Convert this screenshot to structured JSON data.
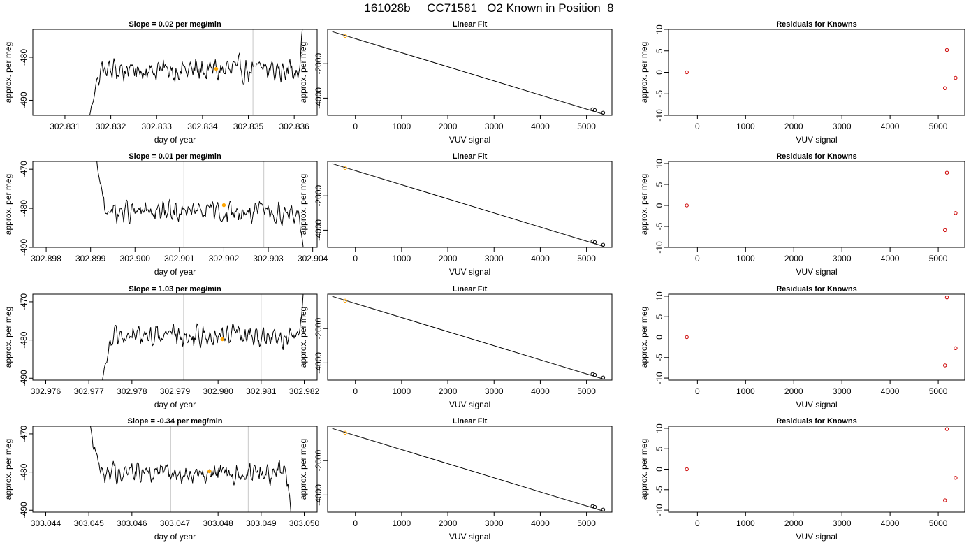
{
  "title": "161028b     CC71581   O2 Known in Position  8",
  "chart_data": [
    {
      "type": "line",
      "title": "Slope =  0.02  per meg/min",
      "xlabel": "day of year",
      "ylabel": "approx. per meg",
      "xlim": [
        302.8303,
        302.8365
      ],
      "ylim": [
        -493.5,
        -473.5
      ],
      "x_ticks": [
        "302.831",
        "302.832",
        "302.833",
        "302.834",
        "302.835",
        "302.836"
      ],
      "y_ticks": [
        "-490",
        "-480"
      ],
      "y_tick_values": [
        -490,
        -480
      ],
      "t_start": 302.8315,
      "t_end": 302.8362,
      "baseline": -483,
      "start_value": -497,
      "end_value": -470,
      "vlines": [
        302.8334,
        302.8351
      ],
      "known_point": {
        "x": 302.8343,
        "y": -482.7,
        "color": "#ffa500"
      }
    },
    {
      "type": "scatter",
      "title": "Linear Fit",
      "xlabel": "VUV signal",
      "ylabel": "approx. per meg",
      "xlim": [
        -600,
        5550
      ],
      "ylim": [
        -5000,
        0
      ],
      "x_ticks": [
        "0",
        "1000",
        "2000",
        "3000",
        "4000",
        "5000"
      ],
      "y_ticks": [
        "-2000",
        "-4000"
      ],
      "y_tick_values": [
        -2000,
        -4000
      ],
      "line": [
        [
          -500,
          -130
        ],
        [
          5380,
          -4950
        ]
      ],
      "points": [
        {
          "x": -220,
          "y": -380,
          "color": "#ffa500"
        },
        {
          "x": 5130,
          "y": -4650,
          "color": "#000000"
        },
        {
          "x": 5180,
          "y": -4700,
          "color": "#000000"
        },
        {
          "x": 5360,
          "y": -4850,
          "color": "#000000"
        }
      ]
    },
    {
      "type": "scatter",
      "title": "Residuals for Knowns",
      "xlabel": "VUV signal",
      "ylabel": "approx. per meg",
      "xlim": [
        -600,
        5550
      ],
      "ylim": [
        -10,
        10
      ],
      "x_ticks": [
        "0",
        "1000",
        "2000",
        "3000",
        "4000",
        "5000"
      ],
      "y_ticks": [
        "-10",
        "-5",
        "0",
        "5",
        "10"
      ],
      "y_tick_values": [
        -10,
        -5,
        0,
        5,
        10
      ],
      "points": [
        {
          "x": -220,
          "y": 0,
          "color": "#cc0000"
        },
        {
          "x": 5180,
          "y": 5.2,
          "color": "#cc0000"
        },
        {
          "x": 5140,
          "y": -3.7,
          "color": "#cc0000"
        },
        {
          "x": 5360,
          "y": -1.3,
          "color": "#cc0000"
        }
      ]
    },
    {
      "type": "line",
      "title": "Slope =  0.01  per meg/min",
      "xlabel": "day of year",
      "ylabel": "approx. per meg",
      "xlim": [
        302.8977,
        302.9041
      ],
      "ylim": [
        -490,
        -468
      ],
      "x_ticks": [
        "302.898",
        "302.899",
        "302.900",
        "302.901",
        "302.902",
        "302.903",
        "302.904"
      ],
      "y_ticks": [
        "-490",
        "-480",
        "-470"
      ],
      "y_tick_values": [
        -490,
        -480,
        -470
      ],
      "t_start": 302.8991,
      "t_end": 302.9038,
      "baseline": -481,
      "start_value": -465,
      "end_value": -492,
      "vlines": [
        302.9011,
        302.9029
      ],
      "known_point": {
        "x": 302.902,
        "y": -479.2,
        "color": "#ffa500"
      }
    },
    {
      "type": "scatter",
      "title": "Linear Fit",
      "xlabel": "VUV signal",
      "ylabel": "approx. per meg",
      "xlim": [
        -600,
        5550
      ],
      "ylim": [
        -5000,
        0
      ],
      "x_ticks": [
        "0",
        "1000",
        "2000",
        "3000",
        "4000",
        "5000"
      ],
      "y_ticks": [
        "-2000",
        "-4000"
      ],
      "y_tick_values": [
        -2000,
        -4000
      ],
      "line": [
        [
          -500,
          -130
        ],
        [
          5380,
          -4950
        ]
      ],
      "points": [
        {
          "x": -220,
          "y": -380,
          "color": "#ffa500"
        },
        {
          "x": 5130,
          "y": -4650,
          "color": "#000000"
        },
        {
          "x": 5180,
          "y": -4700,
          "color": "#000000"
        },
        {
          "x": 5360,
          "y": -4850,
          "color": "#000000"
        }
      ]
    },
    {
      "type": "scatter",
      "title": "Residuals for Knowns",
      "xlabel": "VUV signal",
      "ylabel": "approx. per meg",
      "xlim": [
        -600,
        5550
      ],
      "ylim": [
        -10,
        10.5
      ],
      "x_ticks": [
        "0",
        "1000",
        "2000",
        "3000",
        "4000",
        "5000"
      ],
      "y_ticks": [
        "-10",
        "-5",
        "0",
        "5",
        "10"
      ],
      "y_tick_values": [
        -10,
        -5,
        0,
        5,
        10
      ],
      "points": [
        {
          "x": -220,
          "y": 0,
          "color": "#cc0000"
        },
        {
          "x": 5180,
          "y": 7.8,
          "color": "#cc0000"
        },
        {
          "x": 5140,
          "y": -5.9,
          "color": "#cc0000"
        },
        {
          "x": 5360,
          "y": -1.8,
          "color": "#cc0000"
        }
      ]
    },
    {
      "type": "line",
      "title": "Slope =  1.03  per meg/min",
      "xlabel": "day of year",
      "ylabel": "approx. per meg",
      "xlim": [
        302.9757,
        302.9823
      ],
      "ylim": [
        -490.5,
        -468
      ],
      "x_ticks": [
        "302.976",
        "302.977",
        "302.978",
        "302.979",
        "302.980",
        "302.981",
        "302.982"
      ],
      "y_ticks": [
        "-490",
        "-480",
        "-470"
      ],
      "y_tick_values": [
        -490,
        -480,
        -470
      ],
      "t_start": 302.9773,
      "t_end": 302.982,
      "baseline": -479,
      "start_value": -492,
      "end_value": -464,
      "vlines": [
        302.9792,
        302.981
      ],
      "known_point": {
        "x": 302.9801,
        "y": -479.8,
        "color": "#ffa500"
      }
    },
    {
      "type": "scatter",
      "title": "Linear Fit",
      "xlabel": "VUV signal",
      "ylabel": "approx. per meg",
      "xlim": [
        -600,
        5550
      ],
      "ylim": [
        -5000,
        0
      ],
      "x_ticks": [
        "0",
        "1000",
        "2000",
        "3000",
        "4000",
        "5000"
      ],
      "y_ticks": [
        "-2000",
        "-4000"
      ],
      "y_tick_values": [
        -2000,
        -4000
      ],
      "line": [
        [
          -500,
          -130
        ],
        [
          5380,
          -4950
        ]
      ],
      "points": [
        {
          "x": -220,
          "y": -380,
          "color": "#ffa500"
        },
        {
          "x": 5130,
          "y": -4650,
          "color": "#000000"
        },
        {
          "x": 5180,
          "y": -4700,
          "color": "#000000"
        },
        {
          "x": 5360,
          "y": -4850,
          "color": "#000000"
        }
      ]
    },
    {
      "type": "scatter",
      "title": "Residuals for Knowns",
      "xlabel": "VUV signal",
      "ylabel": "approx. per meg",
      "xlim": [
        -600,
        5550
      ],
      "ylim": [
        -10.5,
        10.5
      ],
      "x_ticks": [
        "0",
        "1000",
        "2000",
        "3000",
        "4000",
        "5000"
      ],
      "y_ticks": [
        "-10",
        "-5",
        "0",
        "5",
        "10"
      ],
      "y_tick_values": [
        -10,
        -5,
        0,
        5,
        10
      ],
      "points": [
        {
          "x": -220,
          "y": 0,
          "color": "#cc0000"
        },
        {
          "x": 5180,
          "y": 9.7,
          "color": "#cc0000"
        },
        {
          "x": 5140,
          "y": -6.9,
          "color": "#cc0000"
        },
        {
          "x": 5360,
          "y": -2.7,
          "color": "#cc0000"
        }
      ]
    },
    {
      "type": "line",
      "title": "Slope =  -0.34  per meg/min",
      "xlabel": "day of year",
      "ylabel": "approx. per meg",
      "xlim": [
        303.0437,
        303.0503
      ],
      "ylim": [
        -490.5,
        -468
      ],
      "x_ticks": [
        "303.044",
        "303.045",
        "303.046",
        "303.047",
        "303.048",
        "303.049",
        "303.050"
      ],
      "y_ticks": [
        "-490",
        "-480",
        "-470"
      ],
      "y_tick_values": [
        -490,
        -480,
        -470
      ],
      "t_start": 303.045,
      "t_end": 303.0497,
      "baseline": -480,
      "start_value": -465,
      "end_value": -492,
      "vlines": [
        303.0469,
        303.0487
      ],
      "known_point": {
        "x": 303.0478,
        "y": -479.8,
        "color": "#ffa500"
      }
    },
    {
      "type": "scatter",
      "title": "Linear Fit",
      "xlabel": "VUV signal",
      "ylabel": "approx. per meg",
      "xlim": [
        -600,
        5550
      ],
      "ylim": [
        -5000,
        0
      ],
      "x_ticks": [
        "0",
        "1000",
        "2000",
        "3000",
        "4000",
        "5000"
      ],
      "y_ticks": [
        "-2000",
        "-4000"
      ],
      "y_tick_values": [
        -2000,
        -4000
      ],
      "line": [
        [
          -500,
          -130
        ],
        [
          5380,
          -4950
        ]
      ],
      "points": [
        {
          "x": -220,
          "y": -380,
          "color": "#ffa500"
        },
        {
          "x": 5130,
          "y": -4650,
          "color": "#000000"
        },
        {
          "x": 5180,
          "y": -4700,
          "color": "#000000"
        },
        {
          "x": 5360,
          "y": -4850,
          "color": "#000000"
        }
      ]
    },
    {
      "type": "scatter",
      "title": "Residuals for Knowns",
      "xlabel": "VUV signal",
      "ylabel": "approx. per meg",
      "xlim": [
        -600,
        5550
      ],
      "ylim": [
        -10.5,
        10.5
      ],
      "x_ticks": [
        "0",
        "1000",
        "2000",
        "3000",
        "4000",
        "5000"
      ],
      "y_ticks": [
        "-10",
        "-5",
        "0",
        "5",
        "10"
      ],
      "y_tick_values": [
        -10,
        -5,
        0,
        5,
        10
      ],
      "points": [
        {
          "x": -220,
          "y": 0,
          "color": "#cc0000"
        },
        {
          "x": 5180,
          "y": 9.8,
          "color": "#cc0000"
        },
        {
          "x": 5140,
          "y": -7.6,
          "color": "#cc0000"
        },
        {
          "x": 5360,
          "y": -2.1,
          "color": "#cc0000"
        }
      ]
    }
  ]
}
